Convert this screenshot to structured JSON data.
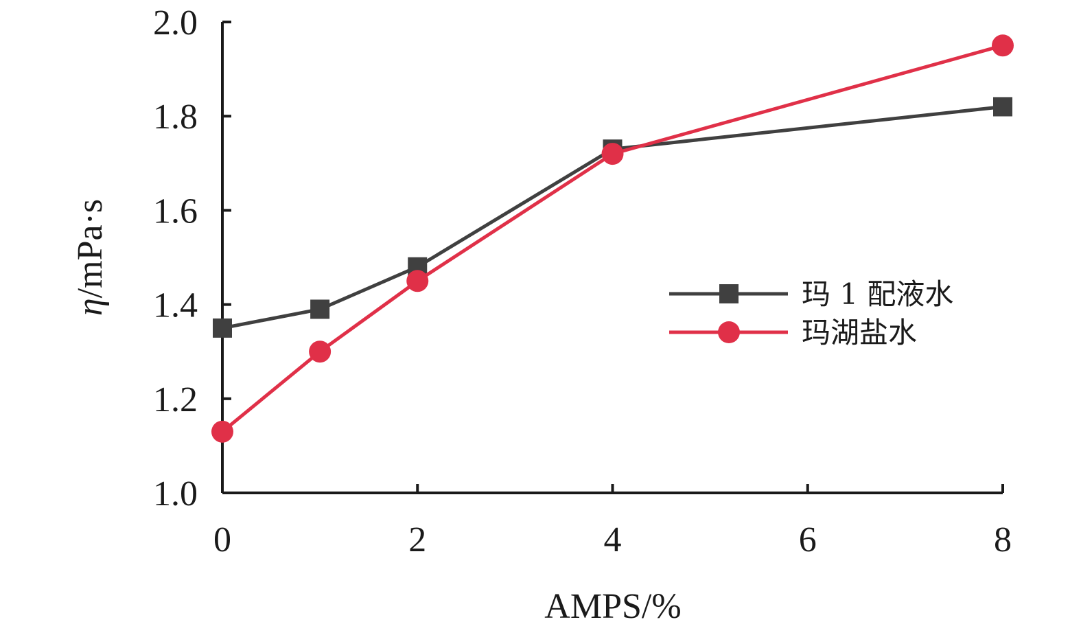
{
  "chart_data": {
    "type": "line",
    "title": "",
    "xlabel": "AMPS/%",
    "ylabel": {
      "symbol": "η",
      "unit": "/mPa·s"
    },
    "xlim": [
      0,
      8
    ],
    "ylim": [
      1.0,
      2.0
    ],
    "x_ticks": [
      "0",
      "2",
      "4",
      "6",
      "8"
    ],
    "y_ticks": [
      "1.0",
      "1.2",
      "1.4",
      "1.6",
      "1.8",
      "2.0"
    ],
    "grid": false,
    "legend_position": "right",
    "series": [
      {
        "name": "玛 1 配液水",
        "marker": "square",
        "color": "#404040",
        "x": [
          0,
          1,
          2,
          4,
          8
        ],
        "y": [
          1.35,
          1.39,
          1.48,
          1.73,
          1.82
        ]
      },
      {
        "name": "玛湖盐水",
        "marker": "circle",
        "color": "#e03048",
        "x": [
          0,
          1,
          2,
          4,
          8
        ],
        "y": [
          1.13,
          1.3,
          1.45,
          1.72,
          1.95
        ]
      }
    ]
  }
}
